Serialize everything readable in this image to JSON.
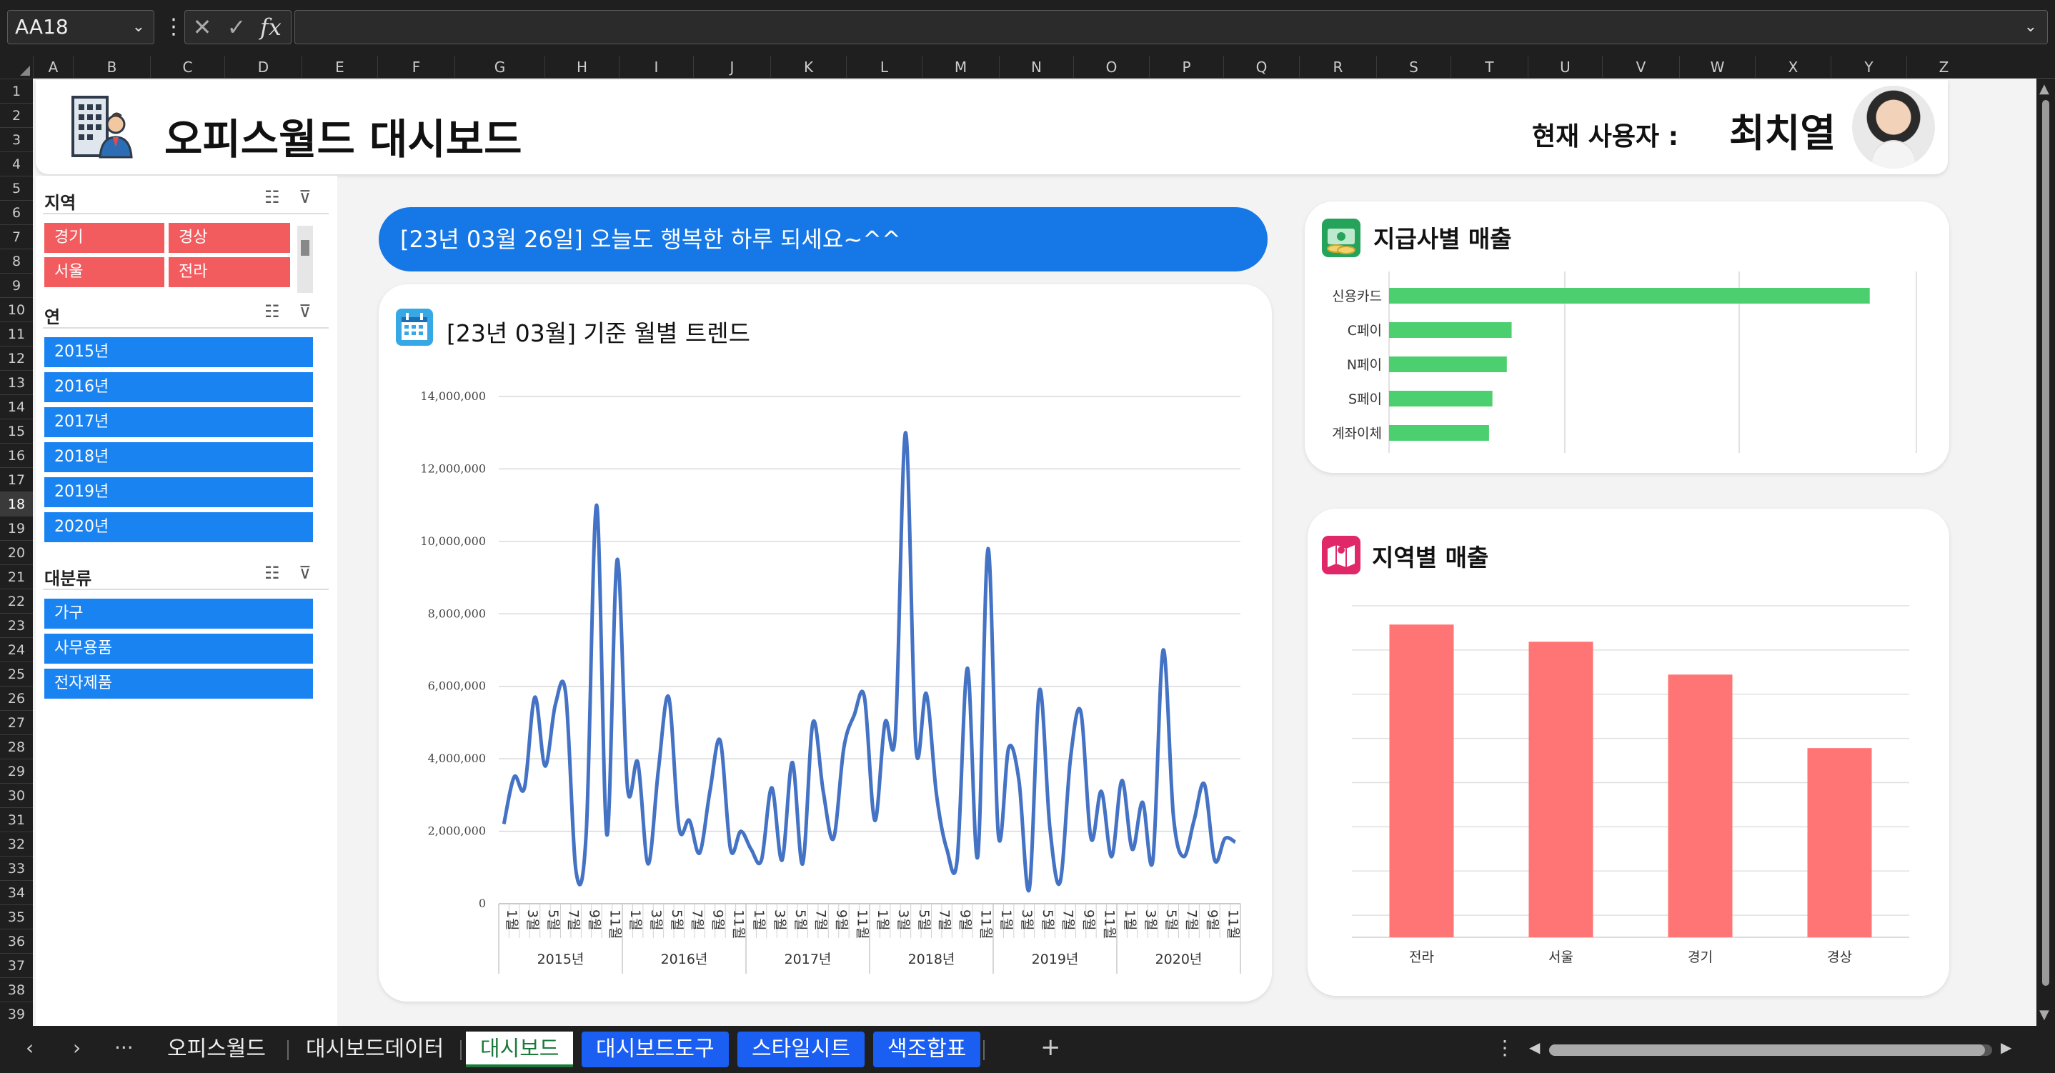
{
  "formula_bar": {
    "name_box": "AA18",
    "cancel_icon": "✕",
    "enter_icon": "✓",
    "fx_label": "fx",
    "formula": ""
  },
  "columns": [
    "A",
    "B",
    "C",
    "D",
    "E",
    "F",
    "G",
    "H",
    "I",
    "J",
    "K",
    "L",
    "M",
    "N",
    "O",
    "P",
    "Q",
    "R",
    "S",
    "T",
    "U",
    "V",
    "W",
    "X",
    "Y",
    "Z"
  ],
  "rows": [
    "1",
    "2",
    "3",
    "4",
    "5",
    "6",
    "7",
    "8",
    "9",
    "10",
    "11",
    "12",
    "13",
    "14",
    "15",
    "16",
    "17",
    "18",
    "19",
    "20",
    "21",
    "22",
    "23",
    "24",
    "25",
    "26",
    "27",
    "28",
    "29",
    "30",
    "31",
    "32",
    "33",
    "34",
    "35",
    "36",
    "37",
    "38",
    "39"
  ],
  "selected_row": "18",
  "header": {
    "title": "오피스월드 대시보드",
    "user_label": "현재 사용자 :",
    "user_name": "최치열"
  },
  "slicers": {
    "region": {
      "title": "지역",
      "items": [
        "경기",
        "경상",
        "서울",
        "전라"
      ]
    },
    "year": {
      "title": "연",
      "items": [
        "2015년",
        "2016년",
        "2017년",
        "2018년",
        "2019년",
        "2020년"
      ]
    },
    "category": {
      "title": "대분류",
      "items": [
        "가구",
        "사무용품",
        "전자제품"
      ]
    }
  },
  "banner": {
    "text": "[23년 03월 26일] 오늘도 행복한 하루 되세요~^^"
  },
  "trend_card": {
    "title": "[23년 03월] 기준 월별 트렌드"
  },
  "payment_card": {
    "title": "지급사별 매출"
  },
  "region_card": {
    "title": "지역별 매출"
  },
  "chart_data": [
    {
      "type": "line",
      "title": "[23년 03월] 기준 월별 트렌드",
      "ylim": [
        0,
        14000000
      ],
      "y_ticks": [
        "0",
        "2,000,000",
        "4,000,000",
        "6,000,000",
        "8,000,000",
        "10,000,000",
        "12,000,000",
        "14,000,000"
      ],
      "x_month_labels": [
        "1월",
        "3월",
        "5월",
        "7월",
        "9월",
        "11월"
      ],
      "x_year_groups": [
        "2015년",
        "2016년",
        "2017년",
        "2018년",
        "2019년",
        "2020년"
      ],
      "values": [
        2200000,
        3500000,
        3200000,
        5700000,
        3800000,
        5500000,
        5800000,
        900000,
        2000000,
        11000000,
        1900000,
        9500000,
        3200000,
        3900000,
        1100000,
        3700000,
        5700000,
        2100000,
        2300000,
        1400000,
        3100000,
        4500000,
        1500000,
        2000000,
        1500000,
        1200000,
        3200000,
        1200000,
        3900000,
        1100000,
        5000000,
        3100000,
        1800000,
        4300000,
        5200000,
        5700000,
        2300000,
        5000000,
        4700000,
        13000000,
        4300000,
        5800000,
        3000000,
        1500000,
        1200000,
        6500000,
        1300000,
        9800000,
        1900000,
        4300000,
        3400000,
        400000,
        5900000,
        2100000,
        600000,
        4000000,
        5300000,
        1800000,
        3100000,
        1300000,
        3400000,
        1500000,
        2800000,
        1200000,
        7000000,
        2400000,
        1300000,
        2300000,
        3300000,
        1200000,
        1800000,
        1700000
      ]
    },
    {
      "type": "bar",
      "orientation": "horizontal",
      "title": "지급사별 매출",
      "categories": [
        "신용카드",
        "C페이",
        "N페이",
        "S페이",
        "계좌이체"
      ],
      "values": [
        100,
        25.5,
        24.5,
        21.5,
        20.8
      ],
      "xlim": [
        0,
        110
      ],
      "color": "#4ccf6f",
      "grid": true
    },
    {
      "type": "bar",
      "title": "지역별 매출",
      "categories": [
        "전라",
        "서울",
        "경기",
        "경상"
      ],
      "values": [
        100,
        94.5,
        84,
        60.5
      ],
      "ylim": [
        0,
        106
      ],
      "color": "#ff7575",
      "grid": true
    }
  ],
  "sheet_tabs": {
    "nav_prev": "‹",
    "nav_next": "›",
    "more": "···",
    "tabs": [
      "오피스월드",
      "대시보드데이터",
      "대시보드",
      "대시보드도구",
      "스타일시트",
      "색조합표"
    ],
    "active": "대시보드",
    "add": "+"
  },
  "colors": {
    "accent_blue": "#1677e6",
    "slicer_red": "#f35c5f",
    "pay_green": "#4ccf6f",
    "region_red": "#ff7575",
    "line_blue": "#4472c4"
  }
}
